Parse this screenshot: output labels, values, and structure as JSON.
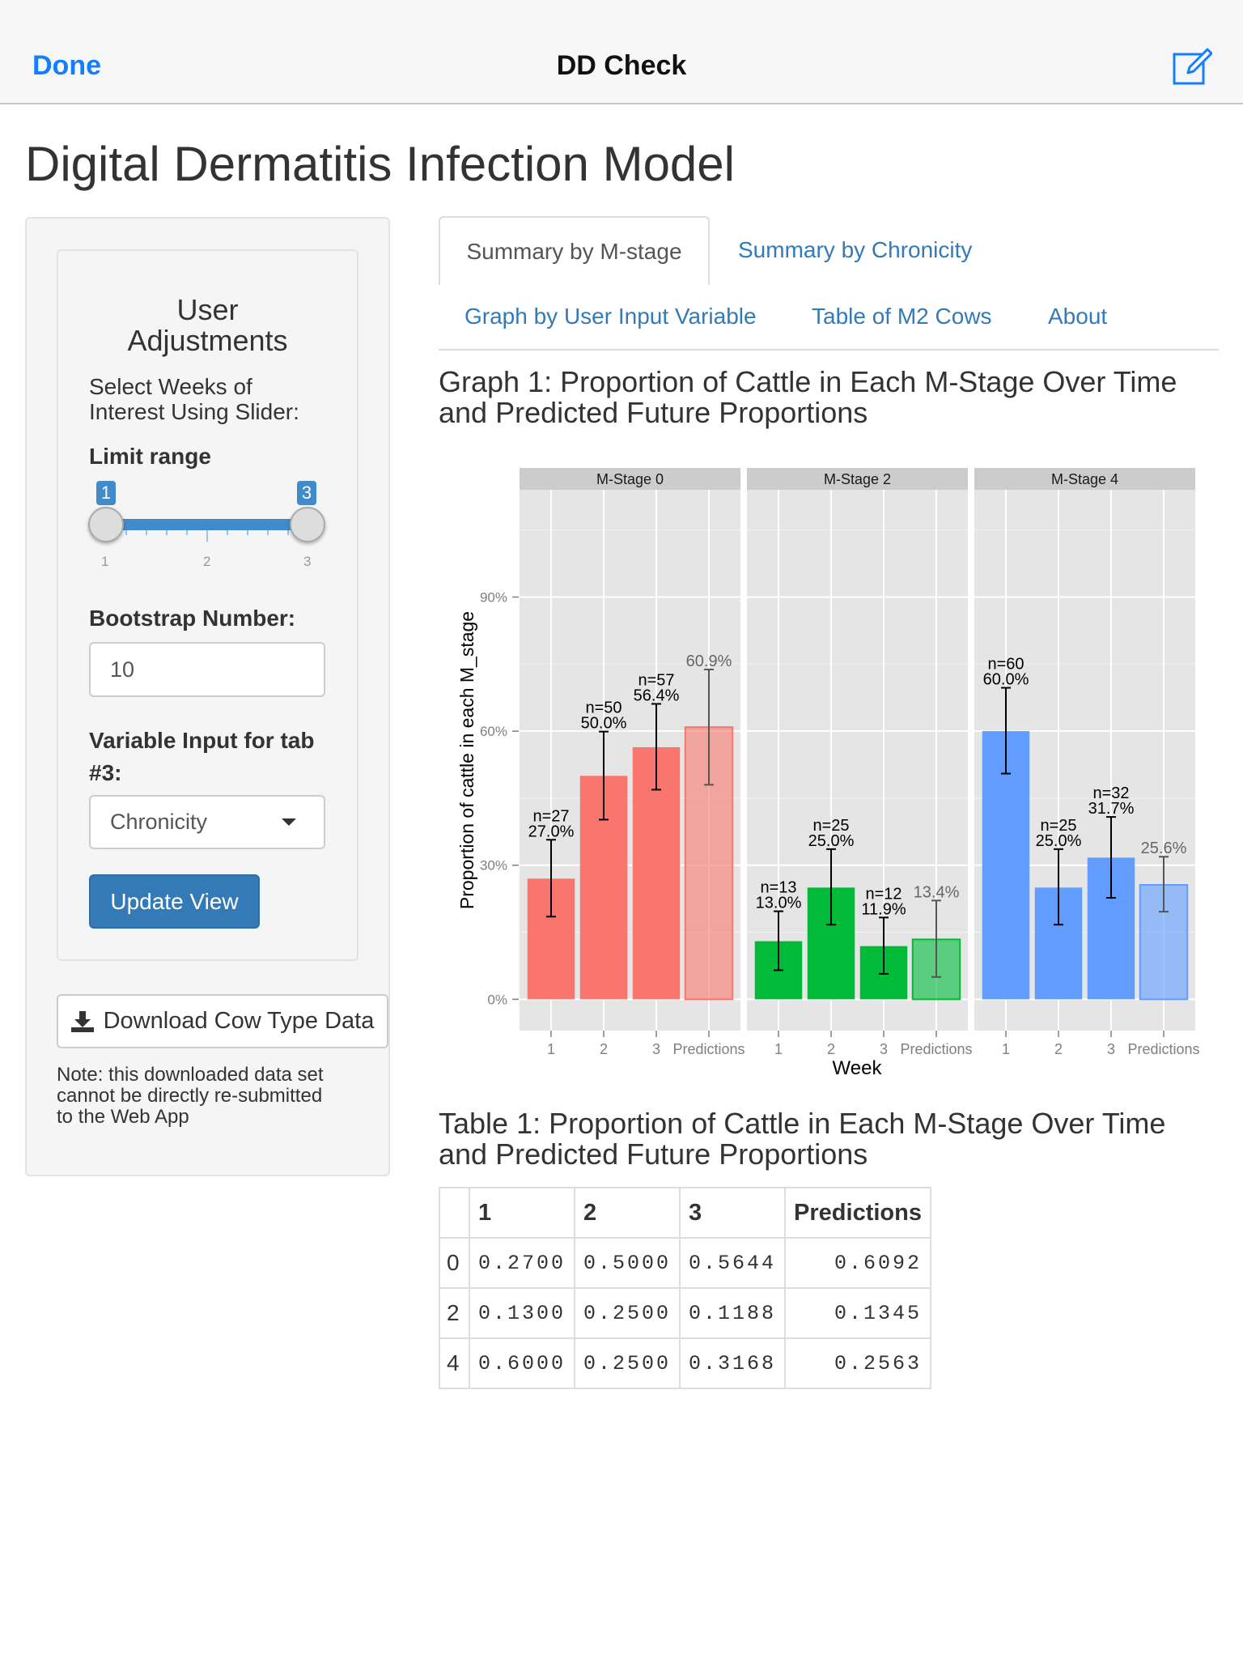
{
  "navbar": {
    "done": "Done",
    "title": "DD Check",
    "edit_icon": "compose-icon"
  },
  "page_title": "Digital Dermatitis Infection Model",
  "sidebar": {
    "heading": "User Adjustments",
    "heading_line1": "User",
    "heading_line2": "Adjustments",
    "slider_intro_line1": "Select Weeks of",
    "slider_intro_line2": "Interest Using Slider:",
    "slider_label": "Limit range",
    "slider_min": "1",
    "slider_max": "3",
    "slider_from": "1",
    "slider_to": "3",
    "slider_ticks": [
      "1",
      "2",
      "3"
    ],
    "bootstrap_label": "Bootstrap Number:",
    "bootstrap_value": "10",
    "variable_label_line1": "Variable Input for tab",
    "variable_label_line2": "#3:",
    "variable_value": "Chronicity",
    "update_button": "Update View",
    "download_button": "Download Cow Type Data",
    "note_line1": "Note: this downloaded data set",
    "note_line2": "cannot be directly re-submitted",
    "note_line3": "to the Web App"
  },
  "tabs": [
    {
      "label": "Summary by M-stage",
      "active": true
    },
    {
      "label": "Summary by Chronicity"
    },
    {
      "label": "Graph by User Input Variable"
    },
    {
      "label": "Table of M2 Cows"
    },
    {
      "label": "About"
    }
  ],
  "graph_title_line1": "Graph 1: Proportion of Cattle in Each M-Stage Over Time",
  "graph_title_line2": "and Predicted Future Proportions",
  "chart_data": {
    "type": "bar",
    "xlabel": "Week",
    "ylabel": "Proportion of cattle in each M_stage",
    "categories": [
      "1",
      "2",
      "3",
      "Predictions"
    ],
    "ylim": [
      -7,
      114
    ],
    "yticks": [
      "0%",
      "30%",
      "60%",
      "90%"
    ],
    "ytick_values": [
      0,
      30,
      60,
      90
    ],
    "grid": true,
    "panels": [
      {
        "name": "M-Stage 0",
        "color": "#F8766D",
        "values": [
          27.0,
          50.0,
          56.4,
          60.9
        ],
        "n": [
          27,
          50,
          57,
          null
        ],
        "ci_low": [
          18.5,
          40.2,
          46.9,
          48.0
        ],
        "ci_high": [
          35.7,
          59.9,
          66.1,
          73.8
        ],
        "labels": [
          "n=27|27.0%",
          "n=50|50.0%",
          "n=57|56.4%",
          "60.9%"
        ]
      },
      {
        "name": "M-Stage 2",
        "color": "#00BA38",
        "values": [
          13.0,
          25.0,
          11.9,
          13.4
        ],
        "n": [
          13,
          25,
          12,
          null
        ],
        "ci_low": [
          6.5,
          16.7,
          5.7,
          5.0
        ],
        "ci_high": [
          19.7,
          33.6,
          18.3,
          22.1
        ],
        "labels": [
          "n=13|13.0%",
          "n=25|25.0%",
          "n=12|11.9%",
          "13.4%"
        ]
      },
      {
        "name": "M-Stage 4",
        "color": "#619CFF",
        "values": [
          60.0,
          25.0,
          31.7,
          25.6
        ],
        "n": [
          60,
          25,
          32,
          null
        ],
        "ci_low": [
          50.5,
          16.7,
          22.7,
          19.6
        ],
        "ci_high": [
          69.7,
          33.6,
          40.8,
          31.9
        ],
        "labels": [
          "n=60|60.0%",
          "n=25|25.0%",
          "n=32|31.7%",
          "25.6%"
        ]
      }
    ]
  },
  "table_title_line1": "Table 1: Proportion of Cattle in Each M-Stage Over Time",
  "table_title_line2": "and Predicted Future Proportions",
  "table": {
    "headers": [
      "",
      "1",
      "2",
      "3",
      "Predictions"
    ],
    "rows": [
      [
        "0",
        "0.2700",
        "0.5000",
        "0.5644",
        "0.6092"
      ],
      [
        "2",
        "0.1300",
        "0.2500",
        "0.1188",
        "0.1345"
      ],
      [
        "4",
        "0.6000",
        "0.2500",
        "0.3168",
        "0.2563"
      ]
    ]
  }
}
